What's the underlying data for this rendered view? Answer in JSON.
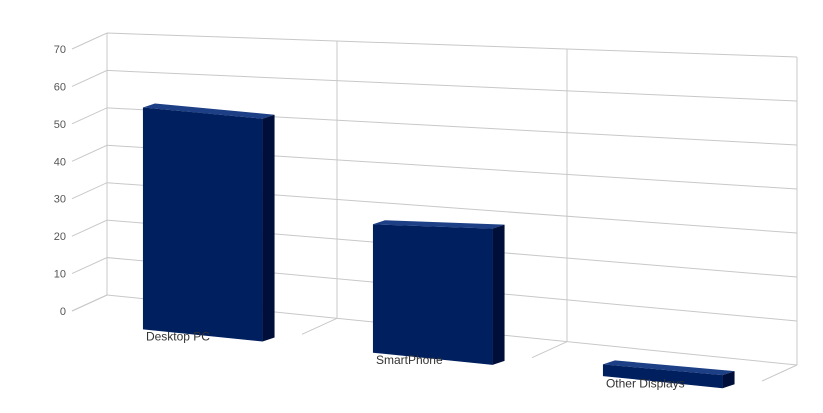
{
  "chart_data": {
    "type": "bar",
    "style": "3d-perspective",
    "categories": [
      "Desktop PC",
      "SmartPhone",
      "Other Displays"
    ],
    "values": [
      57,
      33,
      3
    ],
    "ylim": [
      0,
      70
    ],
    "yticks": [
      "0",
      "10",
      "20",
      "30",
      "40",
      "50",
      "60",
      "70"
    ],
    "grid": true,
    "legend": "none",
    "colors": {
      "bar_front": "#001f5e",
      "bar_side": "#000f3a",
      "bar_top": "#1c3f86",
      "grid": "#c8c8c8"
    }
  }
}
